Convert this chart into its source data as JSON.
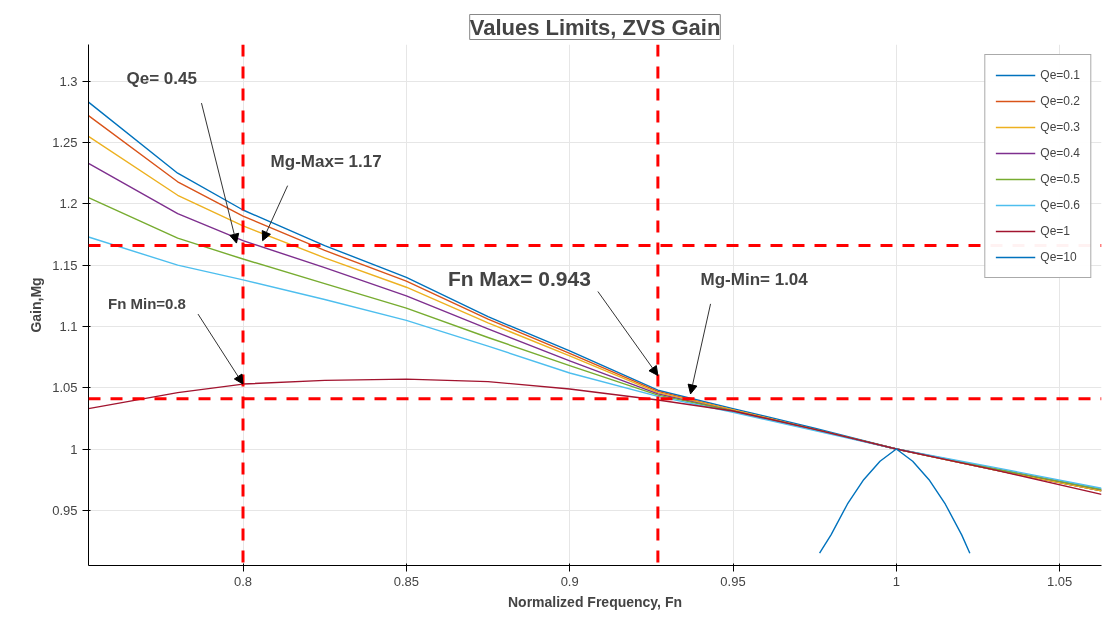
{
  "chart_data": {
    "type": "line",
    "title": "Values Limits, ZVS Gain",
    "xlabel": "Normalized Frequency, Fn",
    "ylabel": "Gain,Mg",
    "x": [
      0.7527,
      0.78,
      0.8,
      0.825,
      0.85,
      0.875,
      0.9,
      0.927,
      0.95,
      0.975,
      1.0,
      1.03,
      1.0628
    ],
    "series": [
      {
        "name": "Qe=0.1",
        "color": "#0072bd",
        "values": [
          1.283,
          1.225,
          1.195,
          1.166,
          1.14,
          1.108,
          1.08,
          1.048,
          1.033,
          1.017,
          1.0,
          0.983,
          0.966
        ]
      },
      {
        "name": "Qe=0.2",
        "color": "#d95319",
        "values": [
          1.272,
          1.218,
          1.19,
          1.162,
          1.137,
          1.106,
          1.078,
          1.047,
          1.032,
          1.016,
          1.0,
          0.983,
          0.966
        ]
      },
      {
        "name": "Qe=0.3",
        "color": "#edb120",
        "values": [
          1.255,
          1.207,
          1.182,
          1.156,
          1.132,
          1.103,
          1.076,
          1.046,
          1.032,
          1.016,
          1.0,
          0.983,
          0.966
        ]
      },
      {
        "name": "Qe=0.4",
        "color": "#7e2f8e",
        "values": [
          1.233,
          1.192,
          1.17,
          1.148,
          1.125,
          1.098,
          1.072,
          1.045,
          1.031,
          1.016,
          1.0,
          0.984,
          0.967
        ]
      },
      {
        "name": "Qe=0.5",
        "color": "#77ac30",
        "values": [
          1.205,
          1.172,
          1.155,
          1.135,
          1.115,
          1.091,
          1.068,
          1.044,
          1.031,
          1.016,
          1.0,
          0.984,
          0.967
        ]
      },
      {
        "name": "Qe=0.6",
        "color": "#4dbeee",
        "values": [
          1.173,
          1.15,
          1.138,
          1.122,
          1.105,
          1.084,
          1.062,
          1.043,
          1.03,
          1.015,
          1.0,
          0.985,
          0.968
        ]
      },
      {
        "name": "Qe=1",
        "color": "#a2142f",
        "values": [
          1.033,
          1.046,
          1.053,
          1.056,
          1.057,
          1.055,
          1.049,
          1.04,
          1.031,
          1.016,
          1.0,
          0.983,
          0.963
        ]
      },
      {
        "name": "Qe=10",
        "color": "#0072bd",
        "x": [
          0.9765,
          0.98,
          0.985,
          0.99,
          0.995,
          1.0,
          1.005,
          1.01,
          1.015,
          1.02,
          1.0225
        ],
        "values": [
          0.915,
          0.93,
          0.955,
          0.975,
          0.99,
          1.0,
          0.99,
          0.975,
          0.955,
          0.93,
          0.915
        ]
      }
    ],
    "xlim": [
      0.7527,
      1.0628
    ],
    "ylim": [
      0.905,
      1.33
    ],
    "xticks": [
      0.8,
      0.85,
      0.9,
      0.95,
      1,
      1.05
    ],
    "yticks": [
      0.95,
      1,
      1.05,
      1.1,
      1.15,
      1.2,
      1.25,
      1.3
    ],
    "ref_lines": [
      {
        "axis": "x",
        "value": 0.8,
        "label": null,
        "color": "#ff0000",
        "line_style": "dashed"
      },
      {
        "axis": "x",
        "value": 0.927,
        "label": null,
        "color": "#ff0000",
        "line_style": "dashed"
      },
      {
        "axis": "y",
        "value": 1.166,
        "label": null,
        "color": "#ff0000",
        "line_style": "dashed"
      },
      {
        "axis": "y",
        "value": 1.041,
        "label": null,
        "color": "#ff0000",
        "line_style": "dashed"
      }
    ],
    "annotations": [
      {
        "text": "Qe= 0.45",
        "x": 0.798,
        "y": 1.168
      },
      {
        "text": "Mg-Max= 1.17",
        "x": 0.806,
        "y": 1.17
      },
      {
        "text": "Fn Min=0.8",
        "x": 0.8,
        "y": 1.053
      },
      {
        "text": "Fn Max= 0.943",
        "x": 0.927,
        "y": 1.06
      },
      {
        "text": "Mg-Min= 1.04",
        "x": 0.937,
        "y": 1.045
      }
    ],
    "grid": true,
    "legend": "top right",
    "line_style": "solid",
    "marker": "none"
  }
}
